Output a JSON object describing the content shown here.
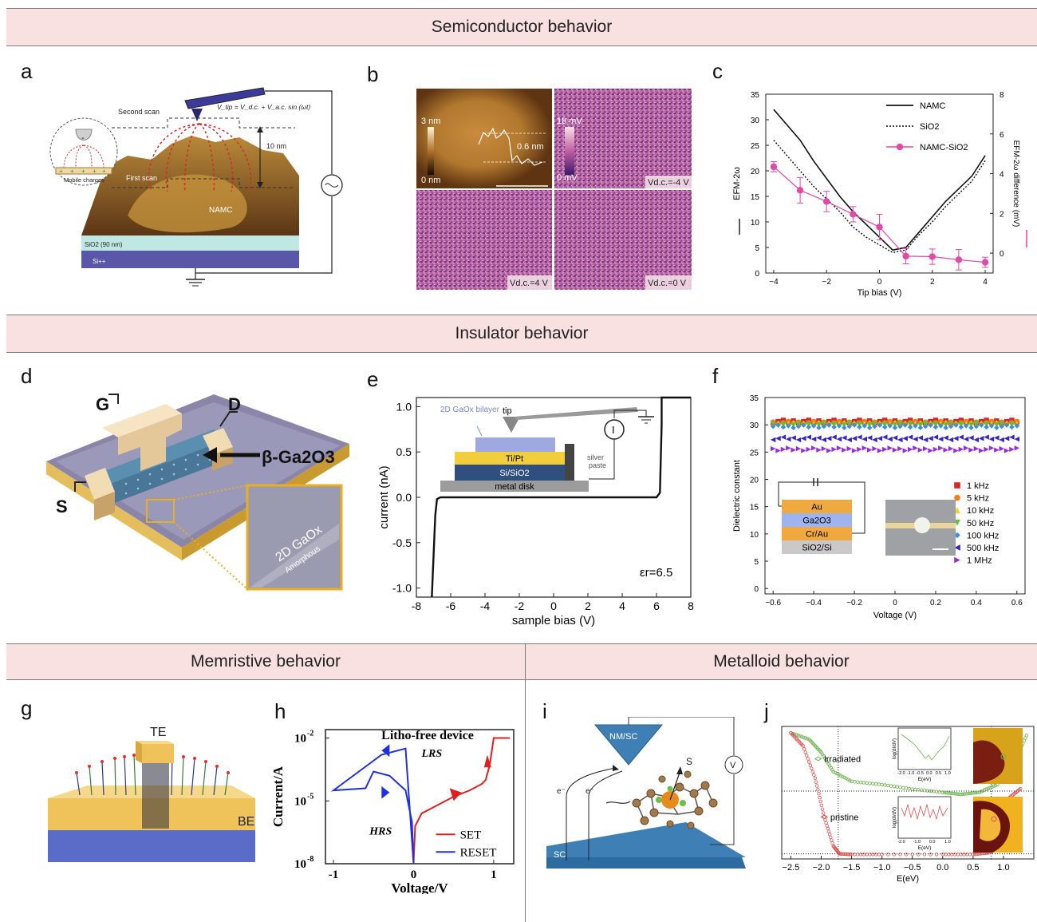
{
  "sections": {
    "semiconductor": "Semiconductor behavior",
    "insulator": "Insulator behavior",
    "memristive": "Memristive behavior",
    "metalloid": "Metalloid behavior"
  },
  "panel_labels": {
    "a": "a",
    "b": "b",
    "c": "c",
    "d": "d",
    "e": "e",
    "f": "f",
    "g": "g",
    "h": "h",
    "i": "i",
    "j": "j"
  },
  "panel_a": {
    "second_scan": "Second scan",
    "first_scan": "First scan",
    "vtip_formula": "V_tip = V_d.c. + V_a.c. sin (ωt)",
    "height": "10 nm",
    "sample": "NAMC",
    "mobile_charges": "Mobile charges",
    "sio2": "SiO2 (90 nm)",
    "si": "Si++",
    "tip_sign": "-",
    "charge_sign": "+"
  },
  "panel_b": {
    "scale_top": "3 nm",
    "scale_bottom": "0 nm",
    "profile_height": "0.6 nm",
    "mv_top": "18 mV",
    "mv_bottom": "0 mV",
    "bias_tr": "Vd.c.=-4 V",
    "bias_bl": "Vd.c.=4 V",
    "bias_br": "Vd.c.=0 V"
  },
  "panel_e": {
    "inset_bilayer": "2D GaOx bilayer",
    "inset_tip": "tip",
    "inset_tipt": "Ti/Pt",
    "inset_sisio2": "Si/SiO2",
    "inset_disk": "metal disk",
    "inset_paste": "silver paste",
    "inset_meter": "I",
    "epsilon": "εr=6.5"
  },
  "panel_d": {
    "gate": "G",
    "drain": "D",
    "source": "S",
    "material": "β-Ga2O3",
    "inset_text": "2D GaOx",
    "inset_sub": "Amorphous"
  },
  "panel_f": {
    "stack": [
      "Au",
      "Ga2O3",
      "Cr/Au",
      "SiO2/Si"
    ]
  },
  "panel_g": {
    "top_electrode": "TE",
    "bottom_electrode": "BE"
  },
  "panel_i": {
    "tip": "NM/SC",
    "substrate": "SC",
    "spin": "S",
    "meter": "V",
    "electron": "e⁻"
  },
  "panel_j_insets": {
    "ylabel": "log(dI/dV)",
    "xlabel": "E(eV)",
    "ticks": [
      "-2.0",
      "-1.0",
      "-0.5",
      "0.0",
      "0.5",
      "1.0"
    ],
    "ticks_bottom": [
      "-2.0",
      "-1.0",
      "0.0",
      "1.0"
    ]
  },
  "chart_data": [
    {
      "id": "c",
      "type": "line",
      "xlabel": "Tip bias (V)",
      "ylabel": "EFM-2ω",
      "ylabel_right": "EFM-2ω difference (mV)",
      "xlim": [
        -4.3,
        4.3
      ],
      "ylim": [
        0,
        35
      ],
      "ylim_right": [
        -1,
        8
      ],
      "xticks": [
        -4,
        -2,
        0,
        2,
        4
      ],
      "yticks": [
        0,
        5,
        10,
        15,
        20,
        25,
        30,
        35
      ],
      "yticks_right": [
        0,
        2,
        4,
        6,
        8
      ],
      "legend": "top-right",
      "series": [
        {
          "name": "NAMC",
          "style": "solid",
          "x": [
            -4,
            -3.5,
            -3,
            -2.5,
            -2,
            -1.5,
            -1,
            -0.5,
            0,
            0.5,
            1,
            1.5,
            2,
            2.5,
            3,
            3.5,
            4
          ],
          "y": [
            32,
            29,
            26,
            22,
            18.5,
            15,
            12,
            9.5,
            7,
            4.5,
            5,
            8,
            11,
            14,
            16.5,
            19,
            23
          ]
        },
        {
          "name": "SiO2",
          "style": "dotted",
          "x": [
            -4,
            -3.5,
            -3,
            -2.5,
            -2,
            -1.5,
            -1,
            -0.5,
            0,
            0.5,
            1,
            1.5,
            2,
            2.5,
            3,
            3.5,
            4
          ],
          "y": [
            26,
            23,
            20,
            17,
            14.5,
            12,
            9,
            7,
            5.5,
            4,
            4.5,
            7.5,
            10,
            13,
            15.5,
            18,
            22
          ]
        },
        {
          "name": "NAMC-SiO2",
          "style": "marker",
          "x": [
            -4,
            -3,
            -2,
            -1,
            0,
            1,
            2,
            3,
            4
          ],
          "y": [
            20.8,
            16.2,
            14,
            11.5,
            9,
            3.3,
            3.2,
            2.6,
            2.1
          ],
          "yerr": [
            1,
            2.5,
            2,
            1.5,
            2.5,
            1.5,
            1.5,
            2,
            1
          ]
        }
      ]
    },
    {
      "id": "e",
      "type": "line",
      "xlabel": "sample bias (V)",
      "ylabel": "current (nA)",
      "xlim": [
        -8,
        8
      ],
      "ylim": [
        -1.1,
        1.1
      ],
      "xticks": [
        -8,
        -6,
        -4,
        -2,
        0,
        2,
        4,
        6,
        8
      ],
      "yticks": [
        -1.0,
        -0.5,
        0.0,
        0.5,
        1.0
      ],
      "series": [
        {
          "name": "",
          "x": [
            -7.1,
            -6.9,
            -6.8,
            -6.6,
            -4,
            0,
            4,
            6.0,
            6.2,
            6.3,
            6.3,
            8
          ],
          "y": [
            -1.1,
            -0.2,
            -0.02,
            0.0,
            0.0,
            0.0,
            0.0,
            0.0,
            0.05,
            0.8,
            1.1,
            1.1
          ]
        }
      ]
    },
    {
      "id": "f",
      "type": "scatter",
      "xlabel": "Voltage (V)",
      "ylabel": "Dielectric constant",
      "xlim": [
        -0.64,
        0.64
      ],
      "ylim": [
        -1,
        35
      ],
      "xticks": [
        -0.6,
        -0.4,
        -0.2,
        0,
        0.2,
        0.4,
        0.6
      ],
      "yticks": [
        0,
        5,
        10,
        15,
        20,
        25,
        30,
        35
      ],
      "legend": "lower-right",
      "series": [
        {
          "name": "1 kHz",
          "y": 30.6,
          "color": "#d62828",
          "marker": "square"
        },
        {
          "name": "5 kHz",
          "y": 30.4,
          "color": "#f07f18",
          "marker": "circle"
        },
        {
          "name": "10 kHz",
          "y": 30.2,
          "color": "#f3d21c",
          "marker": "triangle-up"
        },
        {
          "name": "50 kHz",
          "y": 30.0,
          "color": "#54c63c",
          "marker": "triangle-down"
        },
        {
          "name": "100 kHz",
          "y": 29.7,
          "color": "#3b8fe0",
          "marker": "diamond"
        },
        {
          "name": "500 kHz",
          "y": 27.5,
          "color": "#3624c4",
          "marker": "triangle-left"
        },
        {
          "name": "1 MHz",
          "y": 25.5,
          "color": "#9a2ae0",
          "marker": "triangle-right"
        }
      ]
    },
    {
      "id": "h",
      "type": "line",
      "title": "Litho-free device",
      "xlabel": "Voltage/V",
      "ylabel": "Current/A",
      "xlim": [
        -1.1,
        1.25
      ],
      "ylim_log10": [
        -8,
        -1.6
      ],
      "xticks": [
        -1,
        0,
        1
      ],
      "ytick_labels": [
        "10-8",
        "10-5",
        "10-2"
      ],
      "annotations": [
        "LRS",
        "HRS"
      ],
      "series": [
        {
          "name": "SET",
          "color": "#e02020",
          "x": [
            0,
            0.02,
            0.1,
            0.3,
            0.5,
            0.7,
            0.85,
            0.9,
            0.95,
            1.0,
            1.2
          ],
          "y": [
            -8,
            -6.2,
            -5.6,
            -5.2,
            -4.8,
            -4.5,
            -4.2,
            -4.0,
            -3.3,
            -2.0,
            -2.0
          ]
        },
        {
          "name": "RESET",
          "color": "#2030e0",
          "x": [
            0,
            -0.02,
            -0.1,
            -0.3,
            -0.5,
            -0.6,
            -1.0,
            -0.4,
            -0.1,
            0
          ],
          "y": [
            -8,
            -6,
            -4.5,
            -3.8,
            -3.6,
            -4.4,
            -4.5,
            -2.8,
            -2.5,
            -8
          ]
        }
      ]
    },
    {
      "id": "j",
      "type": "scatter",
      "xlabel": "E(eV)",
      "xlim": [
        -2.65,
        1.5
      ],
      "xticks": [
        -2.5,
        -2.0,
        -1.5,
        -1.0,
        -0.5,
        0.0,
        0.5,
        1.0
      ],
      "series": [
        {
          "name": "irradiated",
          "color": "#6ab04c",
          "x": [
            -2.5,
            -2.2,
            -2.0,
            -1.8,
            -1.5,
            -1.0,
            -0.5,
            0,
            0.3,
            0.6,
            0.9,
            1.2,
            1.4
          ],
          "y": [
            1.9,
            1.8,
            1.6,
            1.3,
            1.15,
            1.1,
            1.03,
            0.98,
            0.95,
            0.98,
            1.1,
            1.5,
            1.9
          ]
        },
        {
          "name": "pristine",
          "color": "#d9534f",
          "x": [
            -2.5,
            -2.3,
            -2.1,
            -1.95,
            -1.8,
            -1.7,
            -1.5,
            -1.0,
            0,
            0.5,
            0.8,
            0.9,
            1.1,
            1.3
          ],
          "y": [
            1.9,
            1.7,
            1.2,
            0.6,
            0.15,
            0.03,
            0.02,
            0.02,
            0.02,
            0.02,
            0.05,
            0.3,
            0.9,
            1.05
          ]
        }
      ]
    }
  ]
}
